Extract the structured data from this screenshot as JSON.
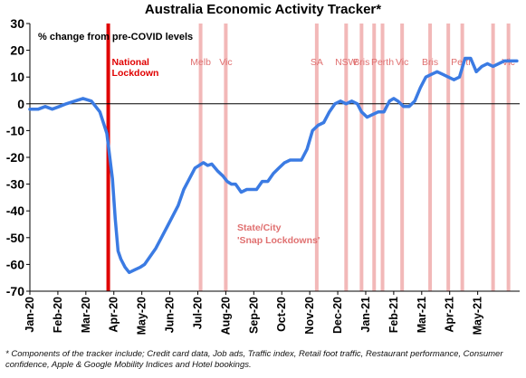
{
  "chart_data": {
    "type": "line",
    "title": "Australia Economic Activity Tracker*",
    "ylabel_note": "% change from pre-COVID levels",
    "ylim": [
      -70,
      30
    ],
    "yticks": [
      30,
      20,
      10,
      0,
      -10,
      -20,
      -30,
      -40,
      -50,
      -60,
      -70
    ],
    "x_tick_labels": [
      "Jan-20",
      "Feb-20",
      "Mar-20",
      "Apr-20",
      "May-20",
      "Jun-20",
      "Jul-20",
      "Aug-20",
      "Sep-20",
      "Oct-20",
      "Nov-20",
      "Dec-20",
      "Jan-21",
      "Feb-21",
      "Mar-21",
      "Apr-21",
      "May-21"
    ],
    "x_range_months": [
      0,
      17.5
    ],
    "grid": false,
    "series": [
      {
        "color": "#3b7be3",
        "x": [
          0,
          0.3,
          0.55,
          0.8,
          1.05,
          1.3,
          1.6,
          1.9,
          2.2,
          2.5,
          2.75,
          2.95,
          3.05,
          3.15,
          3.25,
          3.4,
          3.55,
          3.75,
          3.95,
          4.1,
          4.3,
          4.5,
          4.7,
          4.9,
          5.1,
          5.3,
          5.5,
          5.7,
          5.9,
          6.05,
          6.2,
          6.35,
          6.5,
          6.7,
          6.9,
          7.05,
          7.2,
          7.35,
          7.55,
          7.75,
          7.9,
          8.1,
          8.3,
          8.5,
          8.7,
          8.9,
          9.1,
          9.3,
          9.5,
          9.7,
          9.9,
          10.1,
          10.3,
          10.5,
          10.7,
          10.9,
          11.1,
          11.3,
          11.5,
          11.7,
          11.85,
          12.05,
          12.25,
          12.45,
          12.65,
          12.85,
          13.0,
          13.15,
          13.35,
          13.55,
          13.75,
          13.95,
          14.15,
          14.35,
          14.55,
          14.75,
          14.95,
          15.15,
          15.35,
          15.55,
          15.75,
          15.95,
          16.15,
          16.35,
          16.55,
          16.75,
          16.95,
          17.15,
          17.4
        ],
        "values": [
          -2,
          -2,
          -1,
          -2,
          -1,
          0,
          1,
          2,
          1,
          -3,
          -11,
          -28,
          -43,
          -55,
          -58,
          -61,
          -63,
          -62,
          -61,
          -60,
          -57,
          -54,
          -50,
          -46,
          -42,
          -38,
          -32,
          -28,
          -24,
          -23,
          -22,
          -23,
          -22.5,
          -25,
          -27,
          -29,
          -30,
          -30,
          -33,
          -32,
          -32,
          -32,
          -29,
          -29,
          -26,
          -24,
          -22,
          -21,
          -21,
          -21,
          -17,
          -10,
          -8,
          -7,
          -3,
          0,
          1,
          0,
          1,
          0,
          -3,
          -5,
          -4,
          -3,
          -3,
          1,
          2,
          1,
          -1,
          -1,
          1,
          6,
          10,
          11,
          12,
          11,
          10,
          9,
          10,
          17,
          17,
          12,
          14,
          15,
          14,
          15,
          16,
          16,
          16
        ]
      }
    ],
    "lockdown_lines": [
      {
        "x": 2.8,
        "label": "National\nLockdown",
        "label_color": "#e00000",
        "bold": true,
        "line_color": "#e00000",
        "line_width": 4
      },
      {
        "x": 6.1,
        "label": "Melb"
      },
      {
        "x": 7.0,
        "label": "Vic"
      },
      {
        "x": 10.25,
        "label": "SA"
      },
      {
        "x": 11.3,
        "label": "NSW"
      },
      {
        "x": 11.85,
        "label": "Bris"
      },
      {
        "x": 12.3,
        "label": ""
      },
      {
        "x": 12.6,
        "label": "Perth"
      },
      {
        "x": 13.3,
        "label": "Vic"
      },
      {
        "x": 14.3,
        "label": "Bris"
      },
      {
        "x": 14.95,
        "label": ""
      },
      {
        "x": 15.45,
        "label": "Perth"
      },
      {
        "x": 16.55,
        "label": ""
      },
      {
        "x": 17.1,
        "label": "Vic"
      }
    ],
    "annotation_snap": "State/City\n'Snap Lockdowns'",
    "snap_color": "#e07070",
    "shade_color": "#f2b8b8"
  },
  "footnote": "* Components of the tracker include; Credit card data, Job ads, Traffic index, Retail foot traffic, Restaurant performance, Consumer confidence, Apple & Google Mobility Indices and Hotel bookings."
}
